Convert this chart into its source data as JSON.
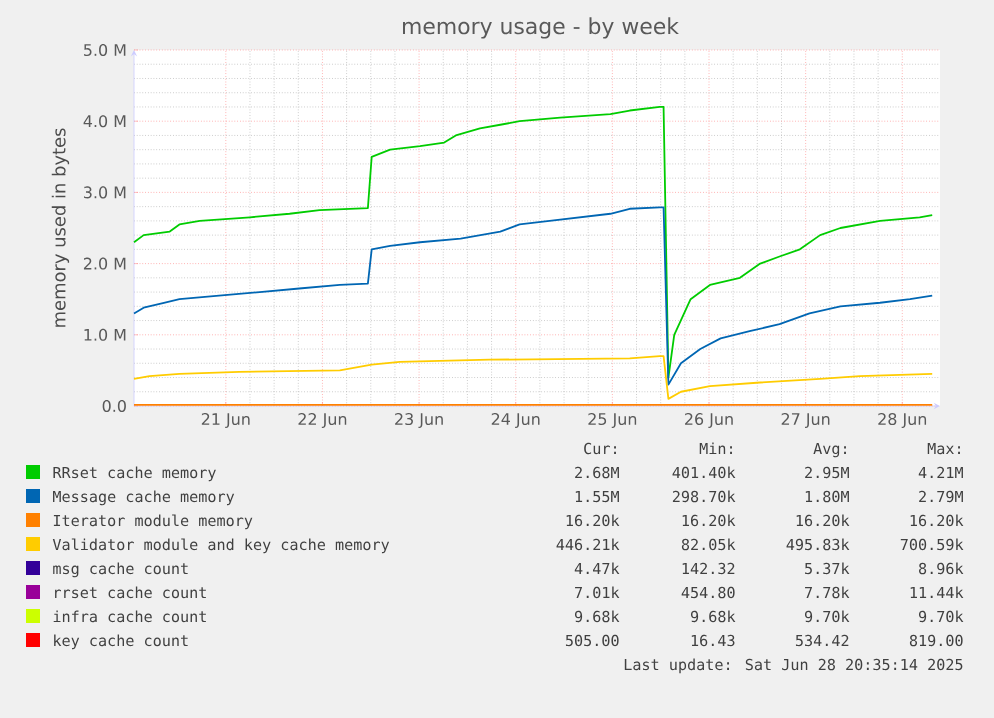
{
  "chart_data": {
    "type": "line",
    "title": "memory usage - by week",
    "ylabel": "memory used in bytes",
    "xlim": [
      "2025-06-20T01:12",
      "2025-06-28T09:22"
    ],
    "ylim": [
      0,
      5.0
    ],
    "xticks": [
      {
        "value": "2025-06-21",
        "label": "21 Jun"
      },
      {
        "value": "2025-06-22",
        "label": "22 Jun"
      },
      {
        "value": "2025-06-23",
        "label": "23 Jun"
      },
      {
        "value": "2025-06-24",
        "label": "24 Jun"
      },
      {
        "value": "2025-06-25",
        "label": "25 Jun"
      },
      {
        "value": "2025-06-26",
        "label": "26 Jun"
      },
      {
        "value": "2025-06-27",
        "label": "27 Jun"
      },
      {
        "value": "2025-06-28",
        "label": "28 Jun"
      }
    ],
    "yticks": [
      {
        "value": 0,
        "label": "0.0"
      },
      {
        "value": 1,
        "label": "1.0 M"
      },
      {
        "value": 2,
        "label": "2.0 M"
      },
      {
        "value": 3,
        "label": "3.0 M"
      },
      {
        "value": 4,
        "label": "4.0 M"
      },
      {
        "value": 5,
        "label": "5.0 M"
      }
    ],
    "grid": true,
    "legend": "bottom",
    "series": [
      {
        "name": "RRset cache memory",
        "color": "#00cc00",
        "x": [
          "2025-06-20T01:12",
          "2025-06-20T03:36",
          "2025-06-20T10:05",
          "2025-06-20T12:29",
          "2025-06-20T17:31",
          "2025-06-21T06:00",
          "2025-06-21T15:50",
          "2025-06-21T23:17",
          "2025-06-22T11:17",
          "2025-06-22T12:14",
          "2025-06-22T16:48",
          "2025-06-23T00:14",
          "2025-06-23T06:14",
          "2025-06-23T09:07",
          "2025-06-23T15:07",
          "2025-06-23T20:10",
          "2025-06-24T00:58",
          "2025-06-24T11:02",
          "2025-06-24T23:31",
          "2025-06-25T04:19",
          "2025-06-25T11:46",
          "2025-06-25T12:43",
          "2025-06-25T13:55",
          "2025-06-25T15:22",
          "2025-06-25T19:26",
          "2025-06-26T00:14",
          "2025-06-26T07:41",
          "2025-06-26T12:43",
          "2025-06-26T17:31",
          "2025-06-26T22:34",
          "2025-06-27T03:36",
          "2025-06-27T08:38",
          "2025-06-27T18:29",
          "2025-06-28T04:19",
          "2025-06-28T07:26"
        ],
        "values": [
          2.3,
          2.4,
          2.45,
          2.55,
          2.6,
          2.65,
          2.7,
          2.75,
          2.78,
          3.5,
          3.6,
          3.65,
          3.7,
          3.8,
          3.9,
          3.95,
          4.0,
          4.05,
          4.1,
          4.15,
          4.2,
          4.2,
          0.4,
          1.0,
          1.5,
          1.7,
          1.8,
          2.0,
          2.1,
          2.2,
          2.4,
          2.5,
          2.6,
          2.65,
          2.68
        ]
      },
      {
        "name": "Message cache memory",
        "color": "#0066b3",
        "x": [
          "2025-06-20T01:12",
          "2025-06-20T03:36",
          "2025-06-20T08:38",
          "2025-06-20T12:29",
          "2025-06-20T22:19",
          "2025-06-21T08:24",
          "2025-06-21T18:14",
          "2025-06-22T04:19",
          "2025-06-22T11:17",
          "2025-06-22T12:14",
          "2025-06-22T16:48",
          "2025-06-23T00:14",
          "2025-06-23T10:19",
          "2025-06-23T20:10",
          "2025-06-24T00:58",
          "2025-06-24T08:24",
          "2025-06-24T23:31",
          "2025-06-25T04:19",
          "2025-06-25T11:46",
          "2025-06-25T12:43",
          "2025-06-25T13:55",
          "2025-06-25T17:02",
          "2025-06-25T21:50",
          "2025-06-26T02:53",
          "2025-06-26T10:05",
          "2025-06-26T17:31",
          "2025-06-27T00:58",
          "2025-06-27T08:38",
          "2025-06-27T18:29",
          "2025-06-28T01:55",
          "2025-06-28T07:26"
        ],
        "values": [
          1.3,
          1.38,
          1.45,
          1.5,
          1.55,
          1.6,
          1.65,
          1.7,
          1.72,
          2.2,
          2.25,
          2.3,
          2.35,
          2.45,
          2.55,
          2.6,
          2.7,
          2.77,
          2.79,
          2.79,
          0.3,
          0.6,
          0.8,
          0.95,
          1.05,
          1.15,
          1.3,
          1.4,
          1.45,
          1.5,
          1.55
        ]
      },
      {
        "name": "Iterator module memory",
        "color": "#ff8000",
        "x": [
          "2025-06-20T01:12",
          "2025-06-28T07:26"
        ],
        "values": [
          0.016,
          0.016
        ]
      },
      {
        "name": "Validator module and key cache memory",
        "color": "#ffcc00",
        "x": [
          "2025-06-20T01:12",
          "2025-06-20T05:02",
          "2025-06-20T12:29",
          "2025-06-21T03:22",
          "2025-06-22T04:19",
          "2025-06-22T12:14",
          "2025-06-22T19:12",
          "2025-06-23T17:31",
          "2025-06-25T04:19",
          "2025-06-25T11:46",
          "2025-06-25T12:43",
          "2025-06-25T13:55",
          "2025-06-25T17:02",
          "2025-06-26T00:14",
          "2025-06-26T12:43",
          "2025-06-27T03:36",
          "2025-06-27T13:26",
          "2025-06-28T07:26"
        ],
        "values": [
          0.38,
          0.42,
          0.45,
          0.48,
          0.5,
          0.58,
          0.62,
          0.65,
          0.67,
          0.7,
          0.7,
          0.1,
          0.2,
          0.28,
          0.33,
          0.38,
          0.42,
          0.45
        ]
      },
      {
        "name": "msg cache count",
        "color": "#330099",
        "values": [
          null
        ]
      },
      {
        "name": "rrset cache count",
        "color": "#990099",
        "values": [
          null
        ]
      },
      {
        "name": "infra cache count",
        "color": "#ccff00",
        "values": [
          null
        ]
      },
      {
        "name": "key cache count",
        "color": "#ff0000",
        "values": [
          null
        ]
      }
    ],
    "annotations": [
      "Cur:",
      "Min:",
      "Avg:",
      "Max:",
      "2.68M",
      "401.40k",
      "2.95M",
      "4.21M",
      "1.55M",
      "298.70k",
      "1.80M",
      "2.79M",
      "16.20k",
      "16.20k",
      "16.20k",
      "16.20k",
      "446.21k",
      "82.05k",
      "495.83k",
      "700.59k",
      "4.47k",
      "142.32",
      "5.37k",
      "8.96k",
      "7.01k",
      "454.80",
      "7.78k",
      "11.44k",
      "9.68k",
      "9.68k",
      "9.70k",
      "9.70k",
      "505.00",
      "16.43",
      "534.42",
      "819.00",
      "Last update: Sat Jun 28 20:35:14 2025"
    ]
  }
}
